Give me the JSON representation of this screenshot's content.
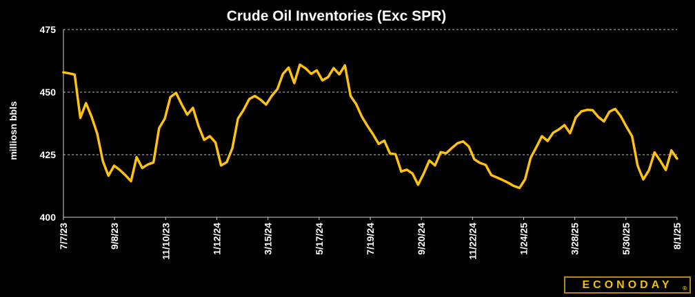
{
  "chart_data": {
    "type": "line",
    "title": "Crude Oil Inventories (Exc SPR)",
    "ylabel": "milliosn bbls",
    "xlabel": "",
    "ylim": [
      400,
      475
    ],
    "yticks": [
      400,
      425,
      450,
      475
    ],
    "grid": "horizontal dashed",
    "line_color": "#ffc20e",
    "x_tick_labels": [
      "7/7/23",
      "9/8/23",
      "11/10/23",
      "1/12/24",
      "3/15/24",
      "5/17/24",
      "7/19/24",
      "9/20/24",
      "11/22/24",
      "1/24/25",
      "3/28/25",
      "5/30/25",
      "8/1/25"
    ],
    "series": [
      {
        "values": [
          457.9,
          457.5,
          457.0,
          439.7,
          445.6,
          440.2,
          433.4,
          422.4,
          416.6,
          420.6,
          418.9,
          416.8,
          414.4,
          424.0,
          419.7,
          421.1,
          421.9,
          435.7,
          439.4,
          448.0,
          449.7,
          445.1,
          441.0,
          443.7,
          436.4,
          430.9,
          432.4,
          429.9,
          420.7,
          422.0,
          427.6,
          439.4,
          442.9,
          447.2,
          448.5,
          447.0,
          445.0,
          448.5,
          451.2,
          457.3,
          459.8,
          453.6,
          461.0,
          459.5,
          457.3,
          458.7,
          454.7,
          456.0,
          459.6,
          457.1,
          460.7,
          448.5,
          445.2,
          440.2,
          436.5,
          433.1,
          429.3,
          430.6,
          425.5,
          425.2,
          418.3,
          419.0,
          417.5,
          413.0,
          417.5,
          422.7,
          420.7,
          426.0,
          425.6,
          427.7,
          429.6,
          430.3,
          428.3,
          423.1,
          421.7,
          420.9,
          416.8,
          415.9,
          414.9,
          413.8,
          412.5,
          411.7,
          415.1,
          423.8,
          428.0,
          432.4,
          430.5,
          433.8,
          435.1,
          436.8,
          433.6,
          439.8,
          442.3,
          442.9,
          442.8,
          440.1,
          438.3,
          442.2,
          443.3,
          440.4,
          436.2,
          432.4,
          420.6,
          415.1,
          418.8,
          425.9,
          422.6,
          418.9,
          426.7,
          423.4
        ]
      }
    ]
  },
  "branding": {
    "logo_text": "ECONODAY",
    "logo_mark": "®"
  }
}
